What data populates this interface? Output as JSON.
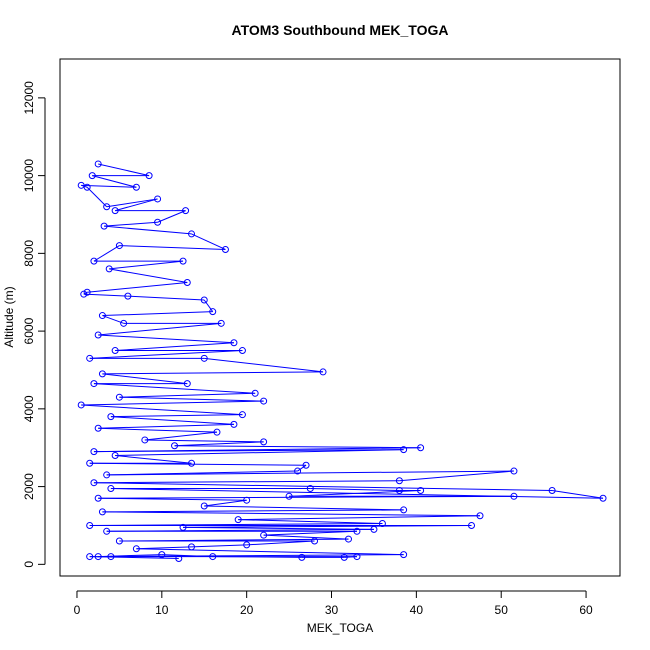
{
  "chart_data": {
    "type": "line",
    "title": "ATOM3 Southbound MEK_TOGA",
    "xlabel": "MEK_TOGA",
    "ylabel": "Altitude (m)",
    "xlim": [
      -2,
      64
    ],
    "ylim": [
      -300,
      13000
    ],
    "xticks": [
      0,
      10,
      20,
      30,
      40,
      50,
      60
    ],
    "yticks": [
      0,
      2000,
      4000,
      6000,
      8000,
      10000,
      12000
    ],
    "grid": false,
    "legend": "none",
    "markers": "open-circle",
    "series_color": "#0000ff",
    "series": [
      {
        "points": [
          [
            2.5,
            10300
          ],
          [
            8.5,
            10000
          ],
          [
            1.8,
            10000
          ],
          [
            7.0,
            9700
          ],
          [
            0.5,
            9750
          ],
          [
            1.2,
            9700
          ],
          [
            3.5,
            9200
          ],
          [
            9.5,
            9400
          ],
          [
            4.5,
            9100
          ],
          [
            12.8,
            9100
          ],
          [
            9.5,
            8800
          ],
          [
            3.2,
            8700
          ],
          [
            13.5,
            8500
          ],
          [
            17.5,
            8100
          ],
          [
            5.0,
            8200
          ],
          [
            2.0,
            7800
          ],
          [
            12.5,
            7800
          ],
          [
            3.8,
            7600
          ],
          [
            13.0,
            7250
          ],
          [
            1.2,
            7000
          ],
          [
            0.8,
            6950
          ],
          [
            6.0,
            6900
          ],
          [
            15.0,
            6800
          ],
          [
            16.0,
            6500
          ],
          [
            3.0,
            6400
          ],
          [
            5.5,
            6200
          ],
          [
            17.0,
            6200
          ],
          [
            2.5,
            5900
          ],
          [
            18.5,
            5700
          ],
          [
            4.5,
            5500
          ],
          [
            19.5,
            5500
          ],
          [
            1.5,
            5300
          ],
          [
            15.0,
            5300
          ],
          [
            29.0,
            4950
          ],
          [
            3.0,
            4900
          ],
          [
            13.0,
            4650
          ],
          [
            2.0,
            4650
          ],
          [
            21.0,
            4400
          ],
          [
            5.0,
            4300
          ],
          [
            22.0,
            4200
          ],
          [
            0.5,
            4100
          ],
          [
            19.5,
            3850
          ],
          [
            4.0,
            3800
          ],
          [
            18.5,
            3600
          ],
          [
            2.5,
            3500
          ],
          [
            16.5,
            3400
          ],
          [
            8.0,
            3200
          ],
          [
            22.0,
            3150
          ],
          [
            11.5,
            3050
          ],
          [
            40.5,
            3000
          ],
          [
            2.0,
            2900
          ],
          [
            38.5,
            2950
          ],
          [
            4.5,
            2800
          ],
          [
            13.5,
            2600
          ],
          [
            1.5,
            2600
          ],
          [
            27.0,
            2550
          ],
          [
            26.0,
            2400
          ],
          [
            3.5,
            2300
          ],
          [
            51.5,
            2400
          ],
          [
            38.0,
            2150
          ],
          [
            2.0,
            2100
          ],
          [
            56.0,
            1900
          ],
          [
            62.0,
            1700
          ],
          [
            4.0,
            1950
          ],
          [
            27.5,
            1950
          ],
          [
            38.0,
            1900
          ],
          [
            40.5,
            1900
          ],
          [
            25.0,
            1750
          ],
          [
            51.5,
            1750
          ],
          [
            2.5,
            1700
          ],
          [
            20.0,
            1650
          ],
          [
            15.0,
            1500
          ],
          [
            38.5,
            1400
          ],
          [
            3.0,
            1350
          ],
          [
            47.5,
            1250
          ],
          [
            19.0,
            1150
          ],
          [
            36.0,
            1050
          ],
          [
            1.5,
            1000
          ],
          [
            46.5,
            1000
          ],
          [
            12.5,
            950
          ],
          [
            35.0,
            900
          ],
          [
            3.5,
            850
          ],
          [
            33.0,
            850
          ],
          [
            22.0,
            750
          ],
          [
            32.0,
            650
          ],
          [
            5.0,
            600
          ],
          [
            28.0,
            600
          ],
          [
            20.0,
            500
          ],
          [
            13.5,
            450
          ],
          [
            7.0,
            400
          ],
          [
            38.5,
            250
          ],
          [
            2.5,
            200
          ],
          [
            10.0,
            250
          ],
          [
            16.0,
            200
          ],
          [
            26.5,
            180
          ],
          [
            31.5,
            180
          ],
          [
            33.0,
            200
          ],
          [
            4.0,
            200
          ],
          [
            1.5,
            200
          ],
          [
            12.0,
            150
          ]
        ]
      }
    ]
  }
}
